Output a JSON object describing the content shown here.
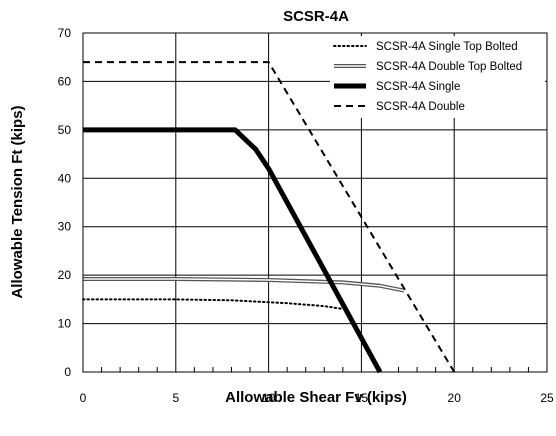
{
  "chart_data": {
    "type": "line",
    "title": "SCSR-4A",
    "xlabel": "Allowable Shear Fv (kips)",
    "ylabel": "Allowable Tension Ft (kips)",
    "xlim": [
      0,
      25
    ],
    "ylim": [
      0,
      70
    ],
    "x_ticks": [
      "0",
      "5",
      "10",
      "15",
      "20",
      "25"
    ],
    "y_ticks": [
      "0",
      "10",
      "20",
      "30",
      "40",
      "50",
      "60",
      "70"
    ],
    "grid": true,
    "legend_position": "top-right",
    "series": [
      {
        "name": "SCSR-4A Single Top Bolted",
        "style": "dotted",
        "color": "#000000",
        "points": [
          [
            0,
            15
          ],
          [
            5,
            15
          ],
          [
            8,
            14.8
          ],
          [
            11,
            14.2
          ],
          [
            13,
            13.6
          ],
          [
            14,
            13.0
          ]
        ]
      },
      {
        "name": "SCSR-4A Double Top Bolted",
        "style": "double",
        "color": "#555555",
        "points": [
          [
            0,
            19.2
          ],
          [
            5,
            19.2
          ],
          [
            10,
            19.0
          ],
          [
            14,
            18.5
          ],
          [
            16,
            17.8
          ],
          [
            17.3,
            16.8
          ]
        ]
      },
      {
        "name": "SCSR-4A Single",
        "style": "thick",
        "color": "#000000",
        "points": [
          [
            0,
            50
          ],
          [
            8.2,
            50
          ],
          [
            9.3,
            46
          ],
          [
            10,
            42
          ],
          [
            16,
            0
          ]
        ]
      },
      {
        "name": "SCSR-4A Double",
        "style": "dashed",
        "color": "#000000",
        "points": [
          [
            0,
            64
          ],
          [
            10,
            64
          ],
          [
            20,
            0
          ]
        ]
      }
    ]
  }
}
